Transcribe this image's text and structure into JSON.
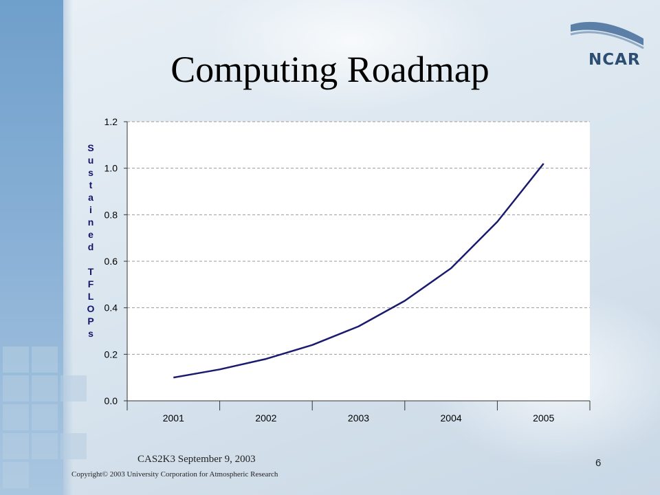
{
  "slide": {
    "title": "Computing Roadmap",
    "logo_text": "NCAR",
    "footer_event": "CAS2K3 September 9, 2003",
    "footer_copyright": "Copyright© 2003 University Corporation for Atmospheric Research",
    "page_number": "6"
  },
  "colors": {
    "line": "#1a1a6e",
    "ylabel": "#15156b",
    "grid": "#999999"
  },
  "chart_data": {
    "type": "line",
    "title": "",
    "xlabel": "",
    "ylabel": "Sustained TFLOPs",
    "x_tick_labels": [
      "2001",
      "2002",
      "2003",
      "2004",
      "2005"
    ],
    "y_tick_labels": [
      "0.0",
      "0.2",
      "0.4",
      "0.6",
      "0.8",
      "1.0",
      "1.2"
    ],
    "ylim": [
      0,
      1.2
    ],
    "xlim": [
      2000.5,
      2005.5
    ],
    "grid": "horizontal dashed",
    "legend": "none",
    "series": [
      {
        "x": [
          2001.0,
          2001.5,
          2002.0,
          2002.5,
          2003.0,
          2003.5,
          2004.0,
          2004.5,
          2005.0
        ],
        "y": [
          0.1,
          0.135,
          0.18,
          0.24,
          0.32,
          0.43,
          0.57,
          0.77,
          1.02
        ]
      }
    ]
  }
}
